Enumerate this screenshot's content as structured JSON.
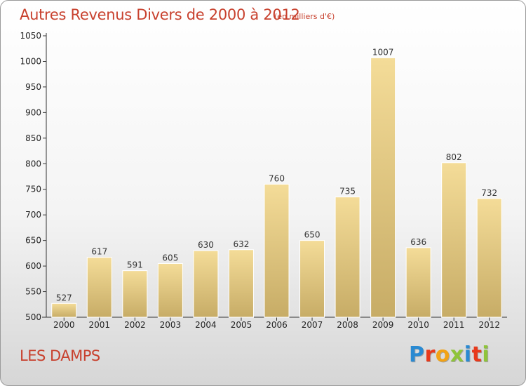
{
  "title": "Autres Revenus Divers de 2000 à 2012",
  "subtitle": "(en milliers d'€)",
  "city": "LES DAMPS",
  "brand": "Proxiti",
  "colors": {
    "title": "#c8412e",
    "bar_top": "#f4dc98",
    "bar_bottom": "#c7ac66",
    "brand_letters": [
      "#2a8ad2",
      "#e8391b",
      "#f2a215",
      "#8fc43a",
      "#2a8ad2",
      "#e8391b",
      "#8fc43a"
    ]
  },
  "chart_data": {
    "type": "bar",
    "categories": [
      "2000",
      "2001",
      "2002",
      "2003",
      "2004",
      "2005",
      "2006",
      "2007",
      "2008",
      "2009",
      "2010",
      "2011",
      "2012"
    ],
    "values": [
      527,
      617,
      591,
      605,
      630,
      632,
      760,
      650,
      735,
      1007,
      636,
      802,
      732
    ],
    "ylim": [
      500,
      1050
    ],
    "yticks": [
      500,
      550,
      600,
      650,
      700,
      750,
      800,
      850,
      900,
      950,
      1000,
      1050
    ],
    "grid": false,
    "legend": "none"
  }
}
